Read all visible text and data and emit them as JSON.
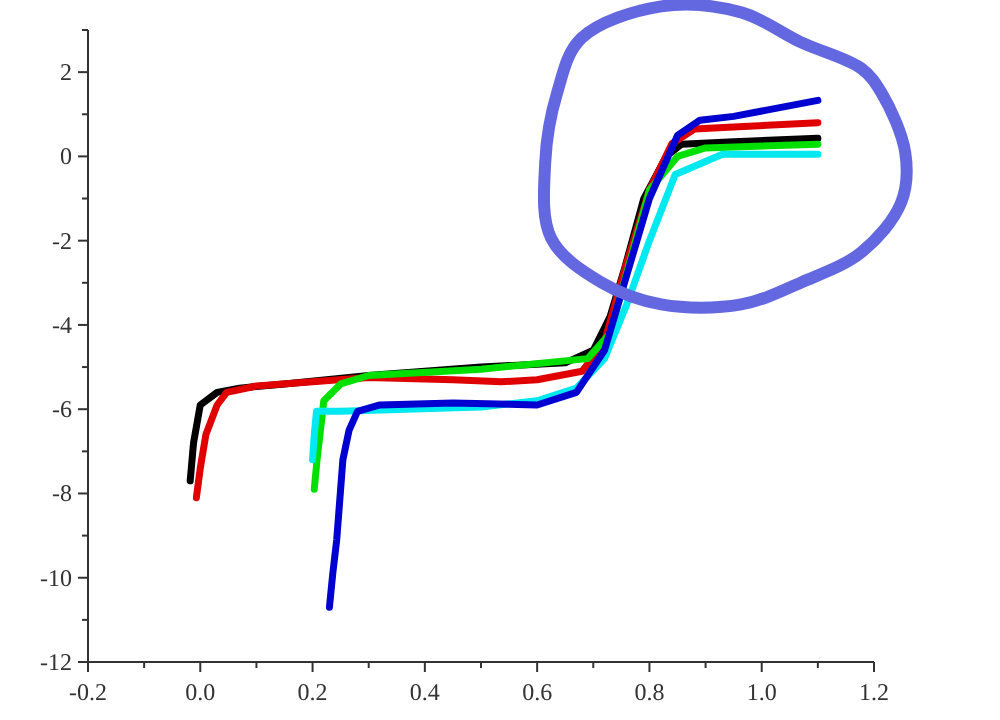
{
  "chart_data": {
    "type": "line",
    "xlim": [
      -0.2,
      1.2
    ],
    "ylim": [
      -12,
      3
    ],
    "xticks": [
      -0.2,
      {
        "value": -0.1,
        "label": null
      },
      {
        "value": 0,
        "label": "0.0"
      },
      {
        "value": 0.1,
        "label": null
      },
      0.2,
      {
        "value": 0.3,
        "label": null
      },
      0.4,
      {
        "value": 0.5,
        "label": null
      },
      0.6,
      {
        "value": 0.7,
        "label": null
      },
      0.8,
      {
        "value": 0.9,
        "label": null
      },
      {
        "value": 1,
        "label": "1.0"
      },
      {
        "value": 1.1,
        "label": null
      },
      1.2
    ],
    "yticks": [
      -12,
      {
        "value": -11,
        "label": null
      },
      -10,
      {
        "value": -9,
        "label": null
      },
      -8,
      {
        "value": -7,
        "label": null
      },
      -6,
      {
        "value": -5,
        "label": null
      },
      -4,
      {
        "value": -3,
        "label": null
      },
      -2,
      {
        "value": -1,
        "label": null
      },
      0,
      {
        "value": 1,
        "label": null
      },
      2,
      {
        "value": 3,
        "label": null
      }
    ],
    "grid": false,
    "marker": "none",
    "line_style": "solid",
    "series": [
      {
        "color": "#000000",
        "x": [
          -0.018,
          -0.012,
          0.0,
          0.03,
          0.07,
          0.15,
          0.3,
          0.5,
          0.65,
          0.7,
          0.73,
          0.757,
          0.79,
          0.83,
          0.857,
          0.95,
          1.1
        ],
        "values": [
          -7.7,
          -6.8,
          -5.9,
          -5.6,
          -5.5,
          -5.4,
          -5.2,
          -5.0,
          -4.9,
          -4.6,
          -3.8,
          -2.6,
          -1.0,
          0.0,
          0.29,
          0.35,
          0.43
        ]
      },
      {
        "color": "#e00000",
        "x": [
          -0.007,
          0.0,
          0.01,
          0.03,
          0.047,
          0.1,
          0.3,
          0.45,
          0.536,
          0.6,
          0.68,
          0.72,
          0.76,
          0.8,
          0.84,
          0.88,
          0.95,
          1.1
        ],
        "values": [
          -8.1,
          -7.4,
          -6.6,
          -5.9,
          -5.6,
          -5.45,
          -5.25,
          -5.3,
          -5.35,
          -5.3,
          -5.1,
          -4.4,
          -2.5,
          -0.8,
          0.3,
          0.65,
          0.7,
          0.8
        ]
      },
      {
        "color": "#00e000",
        "x": [
          0.203,
          0.208,
          0.214,
          0.22,
          0.25,
          0.3,
          0.5,
          0.69,
          0.73,
          0.765,
          0.8,
          0.85,
          0.9,
          1.1
        ],
        "values": [
          -7.9,
          -7.2,
          -6.5,
          -5.8,
          -5.4,
          -5.2,
          -5.05,
          -4.8,
          -4.2,
          -2.5,
          -0.8,
          0.0,
          0.2,
          0.29
        ]
      },
      {
        "color": "#00e8f0",
        "x": [
          0.2,
          0.203,
          0.207,
          0.215,
          0.25,
          0.5,
          0.6,
          0.67,
          0.72,
          0.76,
          0.8,
          0.846,
          0.93,
          1.1
        ],
        "values": [
          -7.2,
          -6.6,
          -6.05,
          -6.05,
          -6.05,
          -5.95,
          -5.8,
          -5.5,
          -4.8,
          -3.5,
          -2.0,
          -0.43,
          0.05,
          0.05
        ]
      },
      {
        "color": "#0000d0",
        "x": [
          0.23,
          0.236,
          0.243,
          0.254,
          0.265,
          0.28,
          0.32,
          0.45,
          0.6,
          0.67,
          0.72,
          0.76,
          0.8,
          0.85,
          0.89,
          0.95,
          1.1
        ],
        "values": [
          -10.7,
          -9.9,
          -9.1,
          -7.2,
          -6.5,
          -6.05,
          -5.9,
          -5.85,
          -5.9,
          -5.6,
          -4.6,
          -2.8,
          -1.0,
          0.5,
          0.86,
          0.95,
          1.33
        ]
      }
    ]
  }
}
